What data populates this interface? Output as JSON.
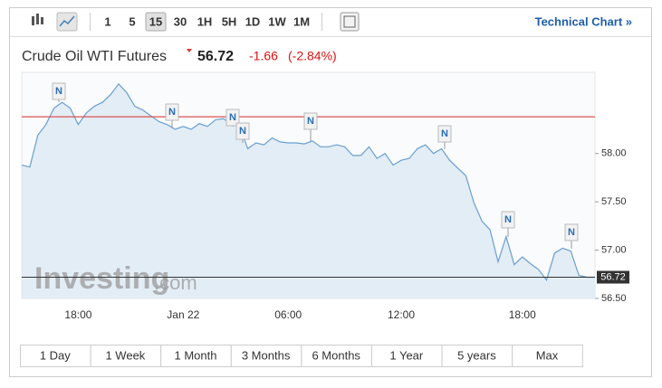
{
  "toolbar": {
    "intervals": [
      "1",
      "5",
      "15",
      "30",
      "1H",
      "5H",
      "1D",
      "1W",
      "1M"
    ],
    "selected": "15",
    "link": "Technical Chart »"
  },
  "header": {
    "title": "Crude Oil WTI Futures",
    "price": "56.72",
    "change": "-1.66",
    "change_percent": "(-2.84%)"
  },
  "watermark": {
    "brand": "Investing",
    "suffix": ".com"
  },
  "chart_data": {
    "type": "line",
    "categories": [
      null,
      null,
      null,
      null,
      null,
      null,
      null,
      "18:00",
      null,
      null,
      null,
      null,
      null,
      null,
      null,
      null,
      null,
      null,
      null,
      null,
      "Jan 22",
      null,
      null,
      null,
      null,
      null,
      null,
      null,
      null,
      null,
      null,
      null,
      null,
      "06:00",
      null,
      null,
      null,
      null,
      null,
      null,
      null,
      null,
      null,
      null,
      null,
      null,
      null,
      "12:00",
      null,
      null,
      null,
      null,
      null,
      null,
      null,
      null,
      null,
      null,
      null,
      null,
      null,
      null,
      "18:00",
      null,
      null,
      null,
      null,
      null,
      null,
      null,
      null,
      null
    ],
    "series": [
      {
        "name": "Crude Oil WTI Futures",
        "color": "#6a9fcf",
        "values": [
          57.88,
          57.86,
          58.19,
          58.3,
          58.47,
          58.53,
          58.47,
          58.3,
          58.42,
          58.49,
          58.53,
          58.61,
          58.72,
          58.63,
          58.49,
          58.45,
          58.39,
          58.33,
          58.3,
          58.25,
          58.28,
          58.25,
          58.31,
          58.28,
          58.35,
          58.36,
          58.3,
          58.28,
          58.05,
          58.11,
          58.09,
          58.16,
          58.12,
          58.11,
          58.11,
          58.1,
          58.13,
          58.07,
          58.07,
          58.09,
          58.07,
          57.98,
          57.98,
          58.07,
          57.95,
          58.0,
          57.88,
          57.93,
          57.95,
          58.05,
          58.09,
          58.0,
          58.05,
          57.93,
          57.85,
          57.77,
          57.49,
          57.3,
          57.21,
          56.88,
          57.14,
          56.85,
          56.93,
          56.86,
          56.8,
          56.69,
          56.97,
          57.02,
          56.99,
          56.74,
          56.72,
          56.72
        ]
      }
    ],
    "ylim": [
      56.5,
      58.84
    ],
    "yticks": [
      {
        "value": 56.5,
        "label": "56.50"
      },
      {
        "value": 57,
        "label": "57.00"
      },
      {
        "value": 57.5,
        "label": "57.50"
      },
      {
        "value": 58,
        "label": "58.00"
      }
    ],
    "reference_line": {
      "value": 58.38,
      "color": "#d9534f"
    },
    "last_price_line": {
      "value": 56.72,
      "color": "#333333"
    },
    "annotations": [
      "N",
      "N",
      "N",
      "N",
      "N",
      "N",
      "N",
      "N"
    ]
  },
  "ranges": [
    "1 Day",
    "1 Week",
    "1 Month",
    "3 Months",
    "6 Months",
    "1 Year",
    "5 years",
    "Max"
  ]
}
